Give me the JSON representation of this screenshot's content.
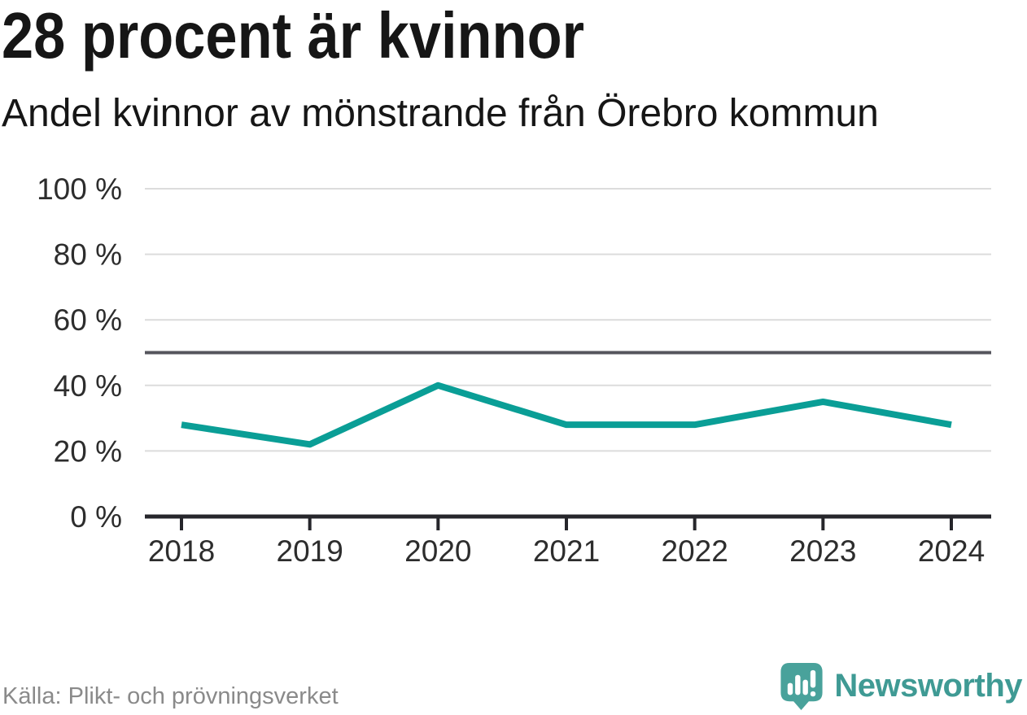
{
  "header": {
    "title": "28 procent är kvinnor",
    "subtitle": "Andel kvinnor av mönstrande från Örebro kommun"
  },
  "chart_data": {
    "type": "line",
    "title": "28 procent är kvinnor",
    "subtitle": "Andel kvinnor av mönstrande från Örebro kommun",
    "x": [
      "2018",
      "2019",
      "2020",
      "2021",
      "2022",
      "2023",
      "2024"
    ],
    "series": [
      {
        "name": "Andel kvinnor av mönstrande",
        "values": [
          28,
          22,
          40,
          28,
          28,
          35,
          28
        ]
      }
    ],
    "unit": "%",
    "ylim": [
      0,
      100
    ],
    "yticks": [
      0,
      20,
      40,
      60,
      80,
      100
    ],
    "ytick_label_format": "{v} %",
    "reference_line": 50,
    "grid": "horizontal",
    "legend": "none",
    "xlabel": "",
    "ylabel": ""
  },
  "colors": {
    "background": "#ffffff",
    "text": "#161616",
    "axis_label": "#2d2d2d",
    "gridline": "#dcdcdc",
    "reference_line": "#55555d",
    "axis": "#26262b",
    "line": "#0a9e96",
    "source_text": "#8a8a8a",
    "brand": "#3f9a94",
    "logo_bubble": "#49a29b",
    "logo_glyph": "#ffffff"
  },
  "footer": {
    "source": "Källa: Plikt- och prövningsverket",
    "brand": "Newsworthy"
  },
  "icons": {
    "logo": "newsworthy-speech-bubble-bar-chart-icon"
  }
}
